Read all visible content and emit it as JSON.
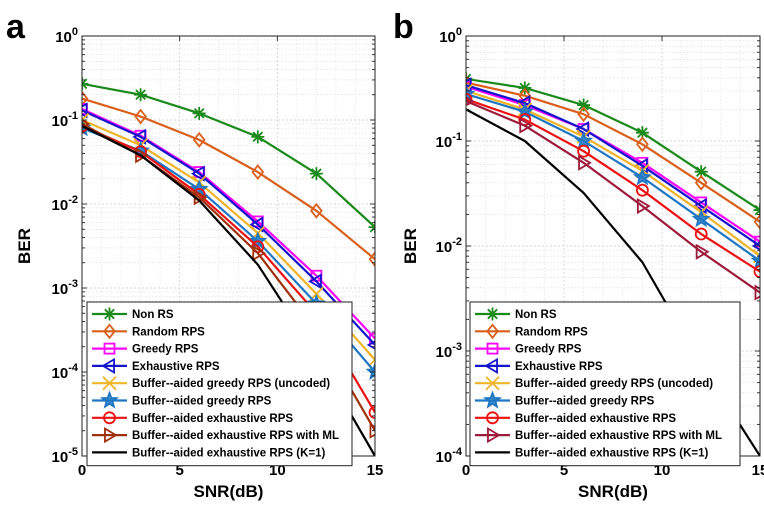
{
  "panels": [
    "a",
    "b"
  ],
  "chart_data": [
    {
      "type": "line",
      "panel": "a",
      "xlabel": "SNR(dB)",
      "ylabel": "BER",
      "xlim": [
        0,
        15
      ],
      "ylim": [
        1e-05,
        1
      ],
      "yscale": "log",
      "xticks": [
        "0",
        "5",
        "10",
        "15"
      ],
      "yticks": [
        {
          "base": "10",
          "exp": "0"
        },
        {
          "base": "10",
          "exp": "-1"
        },
        {
          "base": "10",
          "exp": "-2"
        },
        {
          "base": "10",
          "exp": "-3"
        },
        {
          "base": "10",
          "exp": "-4"
        },
        {
          "base": "10",
          "exp": "-5"
        }
      ],
      "grid": true,
      "legend_position": "bottom-right",
      "series": [
        {
          "name": "Non RS",
          "color": "#1a8a1a",
          "marker": "asterisk",
          "x": [
            0,
            3,
            6,
            9,
            12,
            15
          ],
          "y": [
            0.27,
            0.2,
            0.12,
            0.063,
            0.023,
            0.0053
          ]
        },
        {
          "name": "Random RPS",
          "color": "#d95f1a",
          "marker": "diamond",
          "x": [
            0,
            3,
            6,
            9,
            12,
            15
          ],
          "y": [
            0.18,
            0.11,
            0.058,
            0.024,
            0.0083,
            0.0022
          ]
        },
        {
          "name": "Greedy RPS",
          "color": "#ff00ff",
          "marker": "square",
          "x": [
            0,
            3,
            6,
            9,
            12,
            15
          ],
          "y": [
            0.135,
            0.065,
            0.024,
            0.0062,
            0.0014,
            0.00025
          ]
        },
        {
          "name": "Exhaustive RPS",
          "color": "#1414cc",
          "marker": "triangle-left",
          "x": [
            0,
            3,
            6,
            9,
            12,
            15
          ],
          "y": [
            0.13,
            0.063,
            0.023,
            0.0057,
            0.0012,
            0.00021
          ]
        },
        {
          "name": "Buffer--aided greedy RPS (uncoded)",
          "color": "#f0b429",
          "marker": "x",
          "x": [
            0,
            3,
            6,
            9,
            12,
            15
          ],
          "y": [
            0.1,
            0.05,
            0.018,
            0.0045,
            0.00085,
            0.00014
          ]
        },
        {
          "name": "Buffer--aided greedy RPS",
          "color": "#1f77c4",
          "marker": "star",
          "x": [
            0,
            3,
            6,
            9,
            12,
            15
          ],
          "y": [
            0.08,
            0.043,
            0.015,
            0.0036,
            0.00065,
            0.0001
          ]
        },
        {
          "name": "Buffer--aided exhaustive RPS",
          "color": "#ee1111",
          "marker": "circle",
          "x": [
            0,
            3,
            6,
            9,
            12,
            15
          ],
          "y": [
            0.085,
            0.042,
            0.013,
            0.0031,
            0.0005,
            3.3e-05
          ]
        },
        {
          "name": "Buffer--aided exhaustive RPS with ML",
          "color": "#a0300a",
          "marker": "triangle-right",
          "x": [
            0,
            3,
            6,
            9,
            12,
            15
          ],
          "y": [
            0.09,
            0.038,
            0.012,
            0.0026,
            0.00032,
            2e-05
          ]
        },
        {
          "name": "Buffer--aided exhaustive RPS (K=1)",
          "color": "#000000",
          "marker": "none",
          "x": [
            0,
            3,
            6,
            9,
            12,
            15
          ],
          "y": [
            0.085,
            0.038,
            0.011,
            0.0019,
            0.00016,
            1e-05
          ]
        }
      ]
    },
    {
      "type": "line",
      "panel": "b",
      "xlabel": "SNR(dB)",
      "ylabel": "BER",
      "xlim": [
        0,
        15
      ],
      "ylim": [
        0.0001,
        1
      ],
      "yscale": "log",
      "xticks": [
        "0",
        "5",
        "10",
        "15"
      ],
      "yticks": [
        {
          "base": "10",
          "exp": "0"
        },
        {
          "base": "10",
          "exp": "-1"
        },
        {
          "base": "10",
          "exp": "-2"
        },
        {
          "base": "10",
          "exp": "-3"
        },
        {
          "base": "10",
          "exp": "-4"
        }
      ],
      "grid": true,
      "legend_position": "bottom-right",
      "series": [
        {
          "name": "Non RS",
          "color": "#1a8a1a",
          "marker": "asterisk",
          "x": [
            0,
            3,
            6,
            9,
            12,
            15
          ],
          "y": [
            0.39,
            0.32,
            0.22,
            0.12,
            0.051,
            0.022
          ]
        },
        {
          "name": "Random RPS",
          "color": "#d95f1a",
          "marker": "diamond",
          "x": [
            0,
            3,
            6,
            9,
            12,
            15
          ],
          "y": [
            0.36,
            0.27,
            0.18,
            0.093,
            0.04,
            0.017
          ]
        },
        {
          "name": "Greedy RPS",
          "color": "#ff00ff",
          "marker": "square",
          "x": [
            0,
            3,
            6,
            9,
            12,
            15
          ],
          "y": [
            0.33,
            0.22,
            0.13,
            0.062,
            0.026,
            0.011
          ]
        },
        {
          "name": "Exhaustive RPS",
          "color": "#1414cc",
          "marker": "triangle-left",
          "x": [
            0,
            3,
            6,
            9,
            12,
            15
          ],
          "y": [
            0.34,
            0.23,
            0.13,
            0.058,
            0.024,
            0.01
          ]
        },
        {
          "name": "Buffer--aided greedy RPS (uncoded)",
          "color": "#f0b429",
          "marker": "x",
          "x": [
            0,
            3,
            6,
            9,
            12,
            15
          ],
          "y": [
            0.3,
            0.2,
            0.11,
            0.052,
            0.021,
            0.008
          ]
        },
        {
          "name": "Buffer--aided greedy RPS",
          "color": "#1f77c4",
          "marker": "star",
          "x": [
            0,
            3,
            6,
            9,
            12,
            15
          ],
          "y": [
            0.28,
            0.19,
            0.1,
            0.045,
            0.018,
            0.0072
          ]
        },
        {
          "name": "Buffer--aided exhaustive RPS",
          "color": "#ee1111",
          "marker": "circle",
          "x": [
            0,
            3,
            6,
            9,
            12,
            15
          ],
          "y": [
            0.25,
            0.16,
            0.08,
            0.034,
            0.013,
            0.0057
          ]
        },
        {
          "name": "Buffer--aided exhaustive RPS with ML",
          "color": "#9e1a3a",
          "marker": "triangle-right",
          "x": [
            0,
            3,
            6,
            9,
            12,
            15
          ],
          "y": [
            0.24,
            0.14,
            0.062,
            0.024,
            0.0088,
            0.0036
          ]
        },
        {
          "name": "Buffer--aided exhaustive RPS (K=1)",
          "color": "#000000",
          "marker": "none",
          "x": [
            0,
            3,
            6,
            9,
            12,
            15
          ],
          "y": [
            0.2,
            0.1,
            0.032,
            0.007,
            0.00075,
            0.0001
          ]
        }
      ]
    }
  ]
}
